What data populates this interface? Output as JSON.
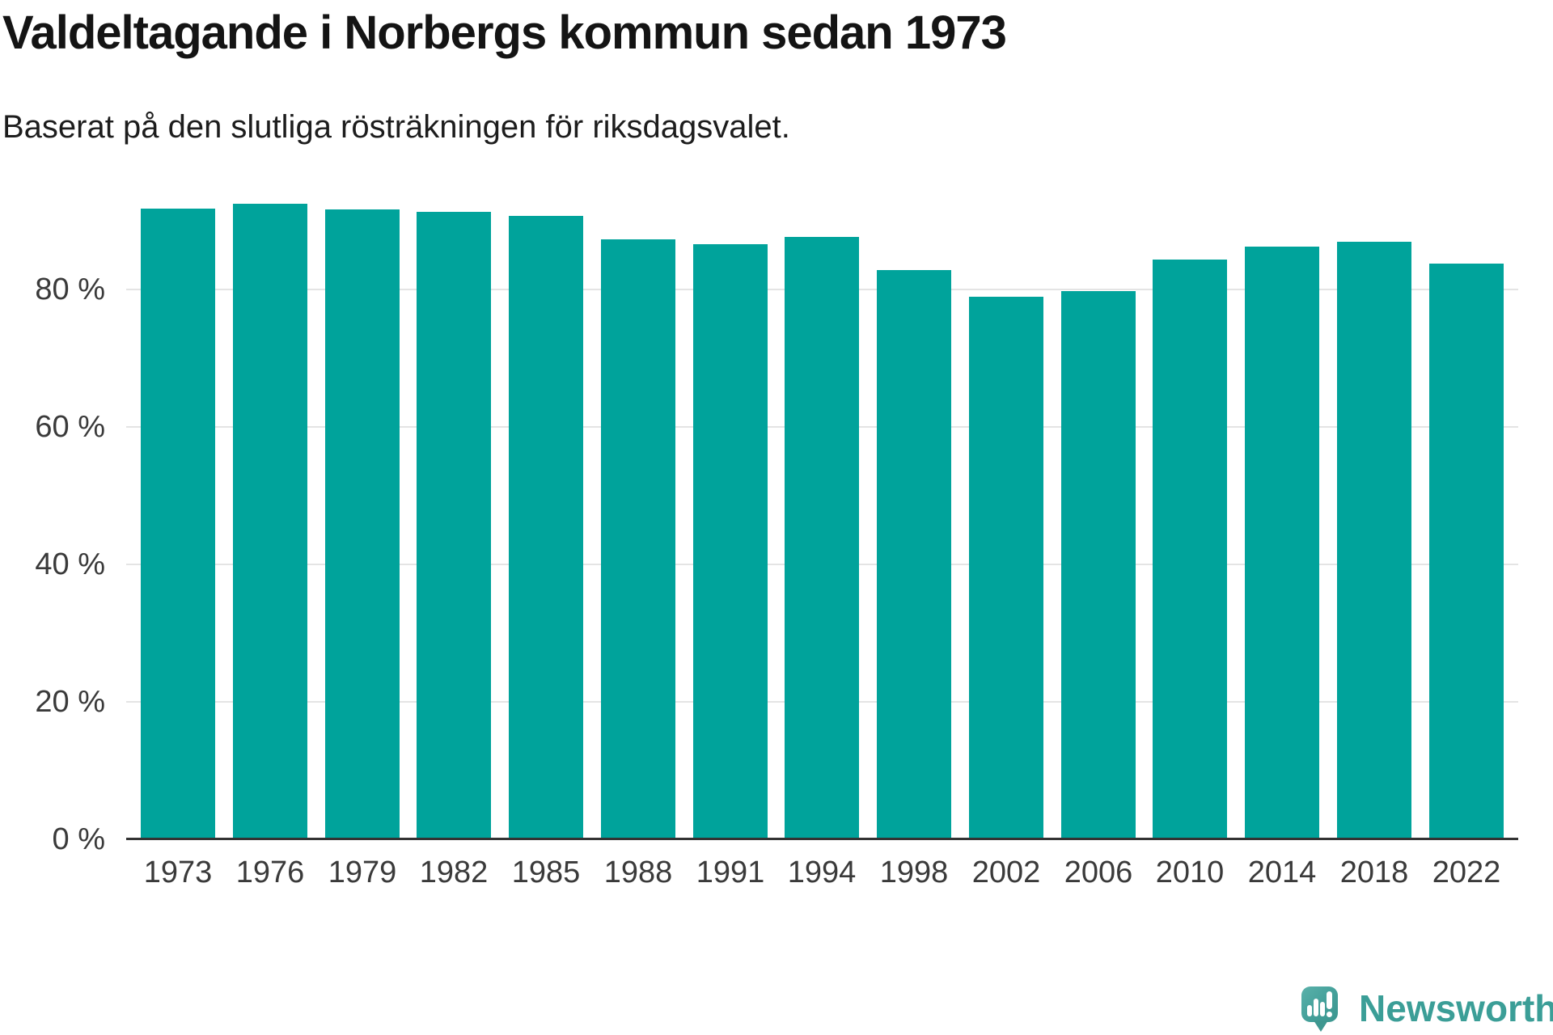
{
  "header": {
    "title": "Valdeltagande i Norbergs kommun sedan 1973",
    "subtitle": "Baserat på den slutliga rösträkningen för riksdagsvalet."
  },
  "footer": {
    "brand": "Newsworthy",
    "logo_icon": "newsworthy-pin-icon"
  },
  "colors": {
    "bar": "#00a39b",
    "grid": "#e4e4e4",
    "axis": "#333333",
    "tick_label": "#3a3a3a",
    "title_text": "#141414",
    "logo_teal": "#44a09a",
    "brand_text": "#3b9e97",
    "background": "#ffffff"
  },
  "chart_data": {
    "type": "bar",
    "title": "Valdeltagande i Norbergs kommun sedan 1973",
    "subtitle": "Baserat på den slutliga rösträkningen för riksdagsvalet.",
    "categories": [
      "1973",
      "1976",
      "1979",
      "1982",
      "1985",
      "1988",
      "1991",
      "1994",
      "1998",
      "2002",
      "2006",
      "2010",
      "2014",
      "2018",
      "2022"
    ],
    "values": [
      91.8,
      92.5,
      91.6,
      91.3,
      90.7,
      87.3,
      86.6,
      87.6,
      82.8,
      79.0,
      79.8,
      84.3,
      86.2,
      86.9,
      83.8
    ],
    "unit": "%",
    "xlabel": "",
    "ylabel": "",
    "ylim": [
      0,
      100
    ],
    "yticks": [
      0,
      20,
      40,
      60,
      80
    ],
    "ytick_format": "{v} %",
    "grid": "horizontal",
    "legend": "none",
    "single_series_color": "#00a39b"
  }
}
